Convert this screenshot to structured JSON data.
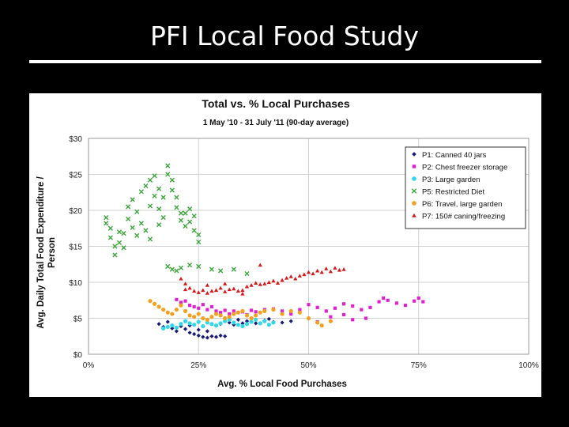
{
  "slide": {
    "title": "PFI Local Food Study"
  },
  "colors": {
    "background": "#000000",
    "P1": "#1a1a7a",
    "P2": "#e020d0",
    "P3": "#30d8e8",
    "P5": "#3aa63a",
    "P6": "#f2a020",
    "P7": "#d81818"
  },
  "chart_data": {
    "type": "scatter",
    "title": "Total vs. % Local Purchases",
    "subtitle": "1 May '10 - 31 July '11 (90-day average)",
    "xlabel": "Avg. % Local Food Purchases",
    "ylabel": "Avg. Daily Total Food Expenditure / Person",
    "xlim": [
      0,
      100
    ],
    "ylim": [
      0,
      30
    ],
    "xticks": [
      "0%",
      "25%",
      "50%",
      "75%",
      "100%"
    ],
    "yticks": [
      "$0",
      "$5",
      "$10",
      "$15",
      "$20",
      "$25",
      "$30"
    ],
    "grid": true,
    "legend_position": "upper-right",
    "series": [
      {
        "name": "P1: Canned 40 jars",
        "marker": "diamond",
        "color": "#1a1a7a",
        "points": [
          [
            16,
            4.2
          ],
          [
            17,
            3.8
          ],
          [
            18,
            4.5
          ],
          [
            19,
            3.6
          ],
          [
            20,
            3.2
          ],
          [
            21,
            3.9
          ],
          [
            22,
            3.5
          ],
          [
            22,
            4.6
          ],
          [
            23,
            3.0
          ],
          [
            24,
            2.8
          ],
          [
            25,
            2.6
          ],
          [
            26,
            2.4
          ],
          [
            27,
            2.3
          ],
          [
            28,
            2.5
          ],
          [
            29,
            2.4
          ],
          [
            27,
            3.2
          ],
          [
            25,
            3.4
          ],
          [
            23,
            4.0
          ],
          [
            30,
            2.6
          ],
          [
            31,
            2.5
          ],
          [
            30,
            4.2
          ],
          [
            32,
            4.4
          ],
          [
            34,
            4.8
          ],
          [
            36,
            4.6
          ],
          [
            38,
            4.3
          ],
          [
            40,
            4.7
          ],
          [
            42,
            4.5
          ],
          [
            44,
            4.4
          ],
          [
            46,
            4.6
          ],
          [
            33,
            4.1
          ],
          [
            35,
            4.3
          ],
          [
            41,
            4.9
          ]
        ]
      },
      {
        "name": "P2: Chest freezer storage",
        "marker": "square",
        "color": "#e020d0",
        "points": [
          [
            20,
            7.6
          ],
          [
            21,
            7.2
          ],
          [
            22,
            7.4
          ],
          [
            23,
            6.8
          ],
          [
            24,
            6.6
          ],
          [
            25,
            6.4
          ],
          [
            26,
            6.9
          ],
          [
            27,
            6.2
          ],
          [
            28,
            6.6
          ],
          [
            29,
            6.0
          ],
          [
            30,
            5.8
          ],
          [
            31,
            6.1
          ],
          [
            32,
            5.6
          ],
          [
            33,
            6.0
          ],
          [
            34,
            5.8
          ],
          [
            35,
            5.9
          ],
          [
            36,
            5.5
          ],
          [
            37,
            6.1
          ],
          [
            38,
            5.9
          ],
          [
            40,
            6.2
          ],
          [
            42,
            6.3
          ],
          [
            44,
            6.0
          ],
          [
            46,
            5.6
          ],
          [
            48,
            6.2
          ],
          [
            50,
            6.9
          ],
          [
            52,
            6.5
          ],
          [
            54,
            6.0
          ],
          [
            56,
            6.4
          ],
          [
            58,
            7.0
          ],
          [
            60,
            6.7
          ],
          [
            62,
            6.2
          ],
          [
            64,
            6.5
          ],
          [
            66,
            7.3
          ],
          [
            67,
            7.8
          ],
          [
            68,
            7.5
          ],
          [
            70,
            7.1
          ],
          [
            72,
            6.8
          ],
          [
            74,
            7.4
          ],
          [
            75,
            7.8
          ],
          [
            76,
            7.3
          ],
          [
            55,
            5.2
          ],
          [
            60,
            4.8
          ],
          [
            63,
            5.0
          ],
          [
            52,
            4.5
          ],
          [
            58,
            5.5
          ]
        ]
      },
      {
        "name": "P3: Large garden",
        "marker": "circle",
        "color": "#30d8e8",
        "points": [
          [
            17,
            3.6
          ],
          [
            18,
            3.8
          ],
          [
            19,
            4.0
          ],
          [
            20,
            3.7
          ],
          [
            21,
            4.2
          ],
          [
            22,
            4.6
          ],
          [
            23,
            4.3
          ],
          [
            24,
            4.1
          ],
          [
            25,
            4.5
          ],
          [
            26,
            3.9
          ],
          [
            27,
            4.4
          ],
          [
            28,
            4.2
          ],
          [
            29,
            4.0
          ],
          [
            30,
            4.3
          ],
          [
            31,
            4.6
          ],
          [
            32,
            4.8
          ],
          [
            33,
            4.4
          ],
          [
            34,
            4.1
          ],
          [
            35,
            3.9
          ],
          [
            36,
            4.2
          ],
          [
            37,
            4.5
          ],
          [
            38,
            4.8
          ],
          [
            39,
            4.3
          ],
          [
            40,
            4.6
          ],
          [
            41,
            4.1
          ],
          [
            42,
            4.4
          ]
        ]
      },
      {
        "name": "P5: Restricted Diet",
        "marker": "x",
        "color": "#3aa63a",
        "points": [
          [
            4,
            19.0
          ],
          [
            4,
            18.2
          ],
          [
            5,
            17.5
          ],
          [
            5,
            16.2
          ],
          [
            6,
            15.0
          ],
          [
            6,
            13.8
          ],
          [
            7,
            17.0
          ],
          [
            7,
            15.5
          ],
          [
            8,
            14.8
          ],
          [
            8,
            16.8
          ],
          [
            9,
            20.5
          ],
          [
            9,
            18.8
          ],
          [
            10,
            21.5
          ],
          [
            10,
            17.6
          ],
          [
            11,
            16.5
          ],
          [
            11,
            19.8
          ],
          [
            12,
            22.6
          ],
          [
            12,
            18.2
          ],
          [
            13,
            23.4
          ],
          [
            13,
            17.2
          ],
          [
            14,
            24.2
          ],
          [
            14,
            20.6
          ],
          [
            15,
            24.8
          ],
          [
            15,
            22.0
          ],
          [
            16,
            23.0
          ],
          [
            16,
            20.2
          ],
          [
            17,
            21.8
          ],
          [
            17,
            19.0
          ],
          [
            18,
            26.2
          ],
          [
            18,
            25.0
          ],
          [
            19,
            24.2
          ],
          [
            19,
            22.8
          ],
          [
            20,
            21.8
          ],
          [
            20,
            20.4
          ],
          [
            21,
            19.6
          ],
          [
            21,
            18.6
          ],
          [
            22,
            17.8
          ],
          [
            22,
            19.6
          ],
          [
            23,
            20.2
          ],
          [
            23,
            18.4
          ],
          [
            24,
            17.2
          ],
          [
            24,
            19.2
          ],
          [
            25,
            16.6
          ],
          [
            25,
            15.6
          ],
          [
            18,
            12.2
          ],
          [
            19,
            11.8
          ],
          [
            20,
            11.6
          ],
          [
            21,
            12.0
          ],
          [
            23,
            12.4
          ],
          [
            25,
            12.2
          ],
          [
            28,
            11.8
          ],
          [
            30,
            11.6
          ],
          [
            33,
            11.8
          ],
          [
            36,
            11.2
          ],
          [
            16,
            18.0
          ],
          [
            14,
            16.0
          ]
        ]
      },
      {
        "name": "P6: Travel, large garden",
        "marker": "circle",
        "color": "#f2a020",
        "points": [
          [
            14,
            7.4
          ],
          [
            15,
            7.0
          ],
          [
            16,
            6.6
          ],
          [
            17,
            6.2
          ],
          [
            18,
            5.8
          ],
          [
            19,
            5.6
          ],
          [
            20,
            6.2
          ],
          [
            21,
            6.8
          ],
          [
            22,
            6.0
          ],
          [
            23,
            5.4
          ],
          [
            24,
            5.2
          ],
          [
            25,
            5.6
          ],
          [
            26,
            5.0
          ],
          [
            27,
            4.8
          ],
          [
            28,
            5.2
          ],
          [
            29,
            5.6
          ],
          [
            30,
            5.4
          ],
          [
            31,
            5.0
          ],
          [
            32,
            5.2
          ],
          [
            33,
            5.6
          ],
          [
            34,
            5.8
          ],
          [
            35,
            6.0
          ],
          [
            36,
            5.4
          ],
          [
            37,
            5.0
          ],
          [
            38,
            5.4
          ],
          [
            39,
            5.8
          ],
          [
            40,
            6.0
          ],
          [
            42,
            6.2
          ],
          [
            44,
            5.6
          ],
          [
            46,
            6.0
          ],
          [
            48,
            5.8
          ],
          [
            50,
            5.0
          ],
          [
            52,
            4.4
          ],
          [
            55,
            4.6
          ],
          [
            53,
            4.0
          ]
        ]
      },
      {
        "name": "P7: 150# caning/freezing",
        "marker": "triangle",
        "color": "#d81818",
        "points": [
          [
            21,
            10.5
          ],
          [
            22,
            9.8
          ],
          [
            23,
            9.2
          ],
          [
            24,
            8.8
          ],
          [
            25,
            8.6
          ],
          [
            26,
            8.9
          ],
          [
            27,
            8.5
          ],
          [
            28,
            8.8
          ],
          [
            29,
            8.9
          ],
          [
            30,
            9.2
          ],
          [
            31,
            8.7
          ],
          [
            32,
            9.0
          ],
          [
            33,
            9.1
          ],
          [
            34,
            8.8
          ],
          [
            35,
            8.9
          ],
          [
            36,
            9.4
          ],
          [
            37,
            9.6
          ],
          [
            38,
            9.9
          ],
          [
            39,
            9.7
          ],
          [
            40,
            9.8
          ],
          [
            41,
            10.0
          ],
          [
            42,
            10.2
          ],
          [
            43,
            9.9
          ],
          [
            44,
            10.3
          ],
          [
            45,
            10.6
          ],
          [
            46,
            10.8
          ],
          [
            47,
            10.5
          ],
          [
            48,
            10.9
          ],
          [
            49,
            11.1
          ],
          [
            50,
            11.4
          ],
          [
            51,
            11.2
          ],
          [
            52,
            11.6
          ],
          [
            53,
            11.4
          ],
          [
            54,
            11.9
          ],
          [
            55,
            11.5
          ],
          [
            56,
            12.0
          ],
          [
            57,
            11.7
          ],
          [
            58,
            11.8
          ],
          [
            39,
            12.4
          ],
          [
            22,
            9.0
          ],
          [
            27,
            9.6
          ],
          [
            31,
            9.8
          ],
          [
            35,
            8.4
          ]
        ]
      }
    ]
  }
}
